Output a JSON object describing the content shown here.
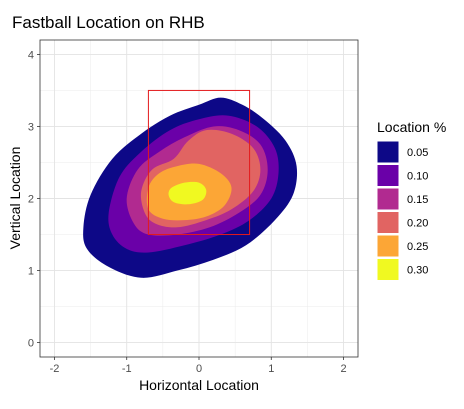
{
  "chart_data": {
    "type": "density-contour",
    "title": "Fastball Location on RHB",
    "xlabel": "Horizontal Location",
    "ylabel": "Vertical Location",
    "xlim": [
      -2.2,
      2.2
    ],
    "ylim": [
      -0.2,
      4.2
    ],
    "x_ticks": [
      -2,
      -1,
      0,
      1,
      2
    ],
    "y_ticks": [
      0,
      1,
      2,
      3,
      4
    ],
    "x_tick_labels": [
      "-2",
      "-1",
      "0",
      "1",
      "2"
    ],
    "y_tick_labels": [
      "0",
      "1",
      "2",
      "3",
      "4"
    ],
    "grid": true,
    "legend": {
      "title": "Location %",
      "position": "right",
      "entries": [
        {
          "label": "0.05",
          "color": "#0d0887"
        },
        {
          "label": "0.10",
          "color": "#6a00a8"
        },
        {
          "label": "0.15",
          "color": "#b12a90"
        },
        {
          "label": "0.20",
          "color": "#e16462"
        },
        {
          "label": "0.25",
          "color": "#fca636"
        },
        {
          "label": "0.30",
          "color": "#f0f921"
        }
      ]
    },
    "strike_zone": {
      "x": [
        -0.7,
        0.7
      ],
      "y": [
        1.5,
        3.5
      ],
      "color": "#e31a1c"
    },
    "contours": [
      {
        "level": "0.05",
        "color": "#0d0887",
        "points": [
          [
            -1.55,
            1.3
          ],
          [
            -1.6,
            1.6
          ],
          [
            -1.5,
            2.05
          ],
          [
            -1.2,
            2.55
          ],
          [
            -0.8,
            2.9
          ],
          [
            -0.4,
            3.15
          ],
          [
            0.0,
            3.3
          ],
          [
            0.3,
            3.4
          ],
          [
            0.6,
            3.3
          ],
          [
            0.9,
            3.1
          ],
          [
            1.2,
            2.8
          ],
          [
            1.35,
            2.45
          ],
          [
            1.3,
            2.05
          ],
          [
            1.05,
            1.7
          ],
          [
            0.65,
            1.35
          ],
          [
            0.2,
            1.15
          ],
          [
            -0.3,
            1.0
          ],
          [
            -0.8,
            0.9
          ],
          [
            -1.25,
            1.05
          ]
        ]
      },
      {
        "level": "0.10",
        "color": "#6a00a8",
        "points": [
          [
            -1.2,
            1.5
          ],
          [
            -1.25,
            1.8
          ],
          [
            -1.1,
            2.3
          ],
          [
            -0.8,
            2.65
          ],
          [
            -0.4,
            2.95
          ],
          [
            0.0,
            3.1
          ],
          [
            0.4,
            3.15
          ],
          [
            0.8,
            3.0
          ],
          [
            1.05,
            2.7
          ],
          [
            1.1,
            2.35
          ],
          [
            1.0,
            2.0
          ],
          [
            0.7,
            1.7
          ],
          [
            0.3,
            1.5
          ],
          [
            -0.2,
            1.35
          ],
          [
            -0.7,
            1.25
          ],
          [
            -1.0,
            1.3
          ]
        ]
      },
      {
        "level": "0.15",
        "color": "#b12a90",
        "points": [
          [
            -0.9,
            1.65
          ],
          [
            -1.0,
            2.0
          ],
          [
            -0.85,
            2.4
          ],
          [
            -0.55,
            2.65
          ],
          [
            -0.2,
            2.85
          ],
          [
            0.2,
            3.0
          ],
          [
            0.55,
            2.95
          ],
          [
            0.85,
            2.75
          ],
          [
            0.95,
            2.4
          ],
          [
            0.85,
            2.05
          ],
          [
            0.55,
            1.8
          ],
          [
            0.15,
            1.6
          ],
          [
            -0.3,
            1.5
          ],
          [
            -0.7,
            1.5
          ]
        ]
      },
      {
        "level": "0.20",
        "color": "#e16462",
        "points": [
          [
            -0.75,
            1.8
          ],
          [
            -0.8,
            2.1
          ],
          [
            -0.65,
            2.4
          ],
          [
            -0.35,
            2.55
          ],
          [
            -0.15,
            2.8
          ],
          [
            0.1,
            2.95
          ],
          [
            0.45,
            2.9
          ],
          [
            0.75,
            2.7
          ],
          [
            0.85,
            2.4
          ],
          [
            0.75,
            2.1
          ],
          [
            0.45,
            1.85
          ],
          [
            0.1,
            1.7
          ],
          [
            -0.3,
            1.6
          ],
          [
            -0.6,
            1.65
          ]
        ]
      },
      {
        "level": "0.25",
        "color": "#fca636",
        "points": [
          [
            -0.7,
            1.85
          ],
          [
            -0.7,
            2.15
          ],
          [
            -0.55,
            2.35
          ],
          [
            -0.3,
            2.45
          ],
          [
            0.0,
            2.48
          ],
          [
            0.3,
            2.35
          ],
          [
            0.45,
            2.15
          ],
          [
            0.35,
            1.9
          ],
          [
            0.1,
            1.75
          ],
          [
            -0.2,
            1.7
          ],
          [
            -0.5,
            1.72
          ]
        ]
      },
      {
        "level": "0.30",
        "color": "#f0f921",
        "points": [
          [
            -0.42,
            2.05
          ],
          [
            -0.38,
            2.15
          ],
          [
            -0.2,
            2.22
          ],
          [
            0.0,
            2.22
          ],
          [
            0.1,
            2.12
          ],
          [
            0.05,
            1.98
          ],
          [
            -0.15,
            1.92
          ],
          [
            -0.35,
            1.95
          ]
        ]
      }
    ]
  }
}
